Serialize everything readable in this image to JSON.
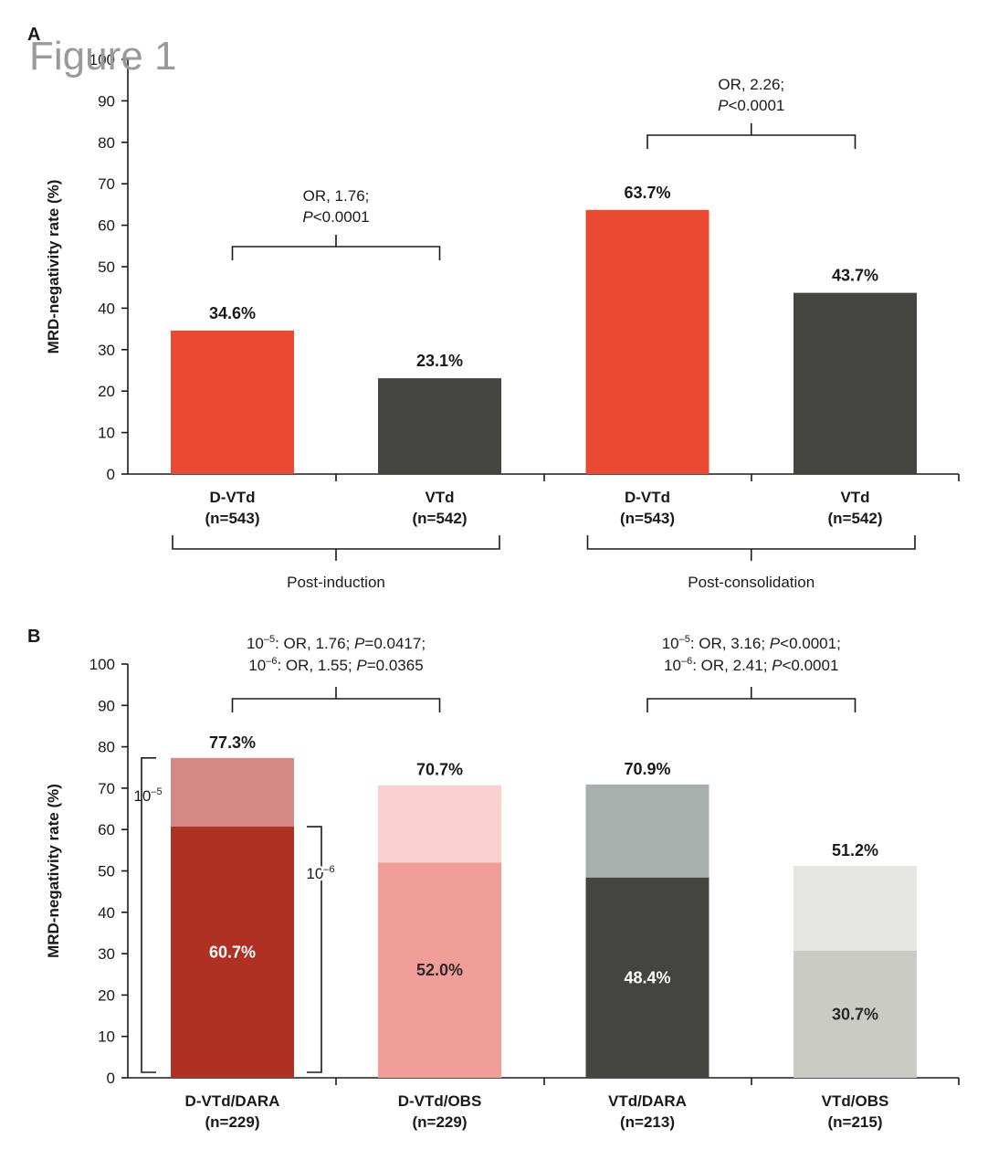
{
  "figure_title": "Figure 1",
  "colors": {
    "dvtd": "#ea4a31",
    "vtd": "#444440",
    "dvtd_dara_1e6": "#ae3124",
    "dvtd_dara_1e5": "#d38a84",
    "dvtd_obs_1e6": "#f19e98",
    "dvtd_obs_1e5": "#f8d0ce",
    "vtd_dara_1e6": "#444440",
    "vtd_dara_1e5": "#a8afad",
    "vtd_obs_1e6": "#cbcbc5",
    "vtd_obs_1e5": "#e5e5e3"
  },
  "chart_data": [
    {
      "panel": "A",
      "type": "bar",
      "ylabel": "MRD-negativity rate (%)",
      "ylim": [
        0,
        100
      ],
      "yticks": [
        "0",
        "10",
        "20",
        "30",
        "40",
        "50",
        "60",
        "70",
        "80",
        "90",
        "100"
      ],
      "categories": [
        {
          "name": "D-VTd",
          "n": "(n=543)"
        },
        {
          "name": "VTd",
          "n": "(n=542)"
        },
        {
          "name": "D-VTd",
          "n": "(n=543)"
        },
        {
          "name": "VTd",
          "n": "(n=542)"
        }
      ],
      "values": [
        34.6,
        23.1,
        63.7,
        43.7
      ],
      "value_labels": [
        "34.6%",
        "23.1%",
        "63.7%",
        "43.7%"
      ],
      "groups": [
        {
          "label": "Post-induction",
          "from": 0,
          "to": 1
        },
        {
          "label": "Post-consolidation",
          "from": 2,
          "to": 3
        }
      ],
      "comparisons": [
        {
          "from": 0,
          "to": 1,
          "line1": "OR, 1.76;",
          "line2_p": "P",
          "line2_rest": "<0.0001"
        },
        {
          "from": 2,
          "to": 3,
          "line1": "OR, 2.26;",
          "line2_p": "P",
          "line2_rest": "<0.0001"
        }
      ]
    },
    {
      "panel": "B",
      "type": "bar",
      "stacked": true,
      "ylabel": "MRD-negativity rate (%)",
      "ylim": [
        0,
        100
      ],
      "yticks": [
        "0",
        "10",
        "20",
        "30",
        "40",
        "50",
        "60",
        "70",
        "80",
        "90",
        "100"
      ],
      "categories": [
        {
          "name": "D-VTd/DARA",
          "n": "(n=229)"
        },
        {
          "name": "D-VTd/OBS",
          "n": "(n=229)"
        },
        {
          "name": "VTd/DARA",
          "n": "(n=213)"
        },
        {
          "name": "VTd/OBS",
          "n": "(n=215)"
        }
      ],
      "threshold_1e6": [
        60.7,
        52.0,
        48.4,
        30.7
      ],
      "threshold_1e5": [
        77.3,
        70.7,
        70.9,
        51.2
      ],
      "labels_1e6": [
        "60.7%",
        "52.0%",
        "48.4%",
        "30.7%"
      ],
      "labels_1e5": [
        "77.3%",
        "70.7%",
        "70.9%",
        "51.2%"
      ],
      "bracket_1e5": {
        "base": "10",
        "exp": "–5"
      },
      "bracket_1e6": {
        "base": "10",
        "exp": "–6"
      },
      "comparisons": [
        {
          "from": 0,
          "to": 1,
          "line1": {
            "exp": "–5",
            "or": ": OR, 1.76; ",
            "p": "P",
            "rest": "=0.0417;"
          },
          "line2": {
            "exp": "–6",
            "or": ": OR, 1.55; ",
            "p": "P",
            "rest": "=0.0365"
          }
        },
        {
          "from": 2,
          "to": 3,
          "line1": {
            "exp": "–5",
            "or": ": OR, 3.16; ",
            "p": "P",
            "rest": "<0.0001;"
          },
          "line2": {
            "exp": "–6",
            "or": ": OR, 2.41; ",
            "p": "P",
            "rest": "<0.0001"
          }
        }
      ]
    }
  ]
}
